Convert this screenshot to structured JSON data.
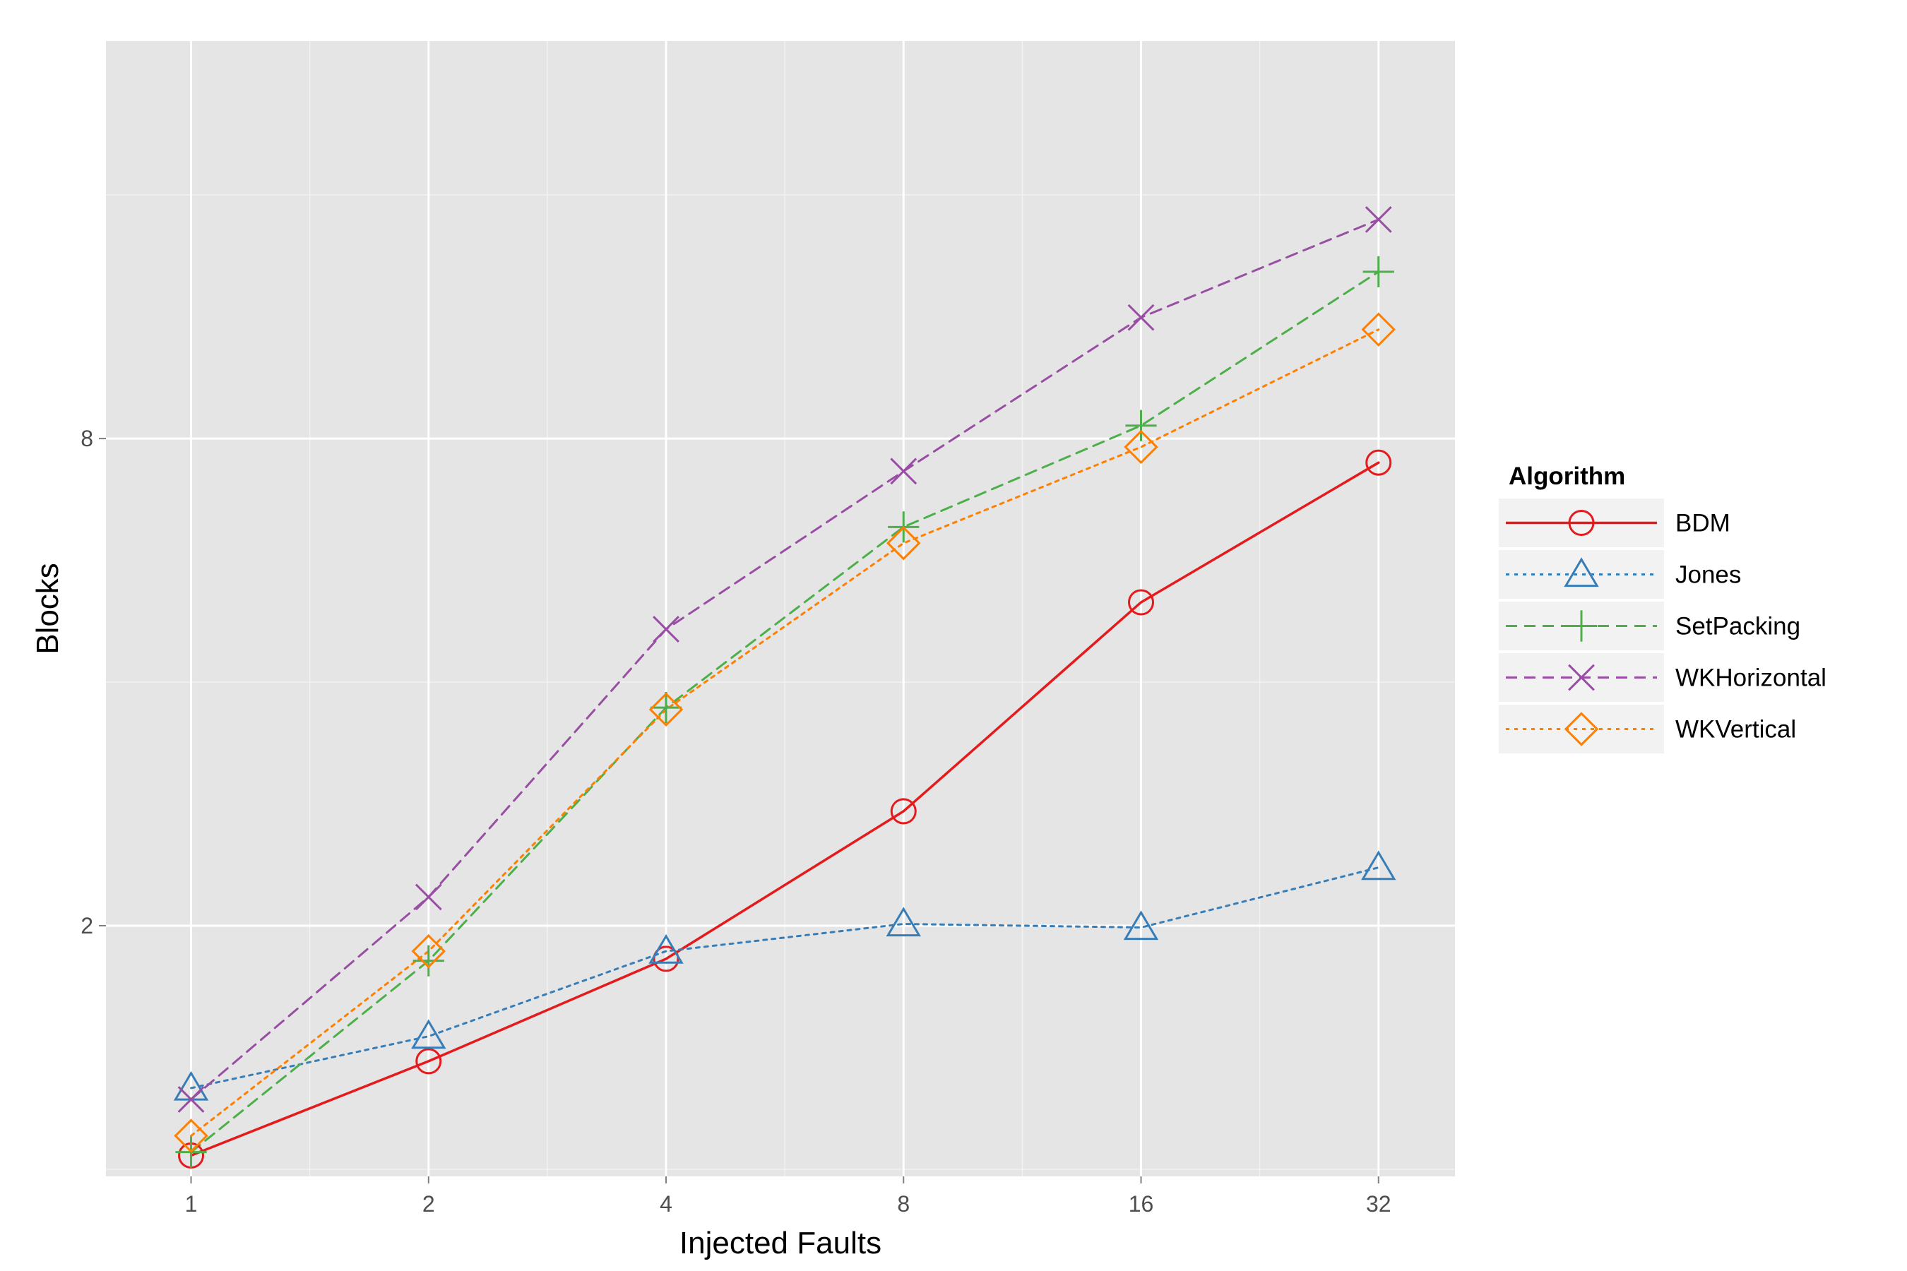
{
  "chart_data": {
    "type": "line",
    "title": "",
    "xlabel": "Injected Faults",
    "ylabel": "Blocks",
    "x_scale": "log2",
    "y_scale": "log2",
    "x": [
      1,
      2,
      4,
      8,
      16,
      32
    ],
    "x_tick_labels": [
      "1",
      "2",
      "4",
      "8",
      "16",
      "32"
    ],
    "y_ticks": [
      2,
      8
    ],
    "y_tick_labels": [
      "2",
      "8"
    ],
    "xlim": [
      0.78,
      40
    ],
    "ylim": [
      0.98,
      24.8
    ],
    "grid": true,
    "legend": {
      "title": "Algorithm",
      "position": "right"
    },
    "colors": {
      "panel_background": "#e5e5e5",
      "grid_major": "#ffffff",
      "grid_minor": "#f2f2f2"
    },
    "series": [
      {
        "name": "BDM",
        "values": [
          1.04,
          1.36,
          1.82,
          2.77,
          5.02,
          7.47
        ],
        "color": "#e41a1c",
        "line": "solid",
        "marker": "circle"
      },
      {
        "name": "Jones",
        "values": [
          1.26,
          1.46,
          1.86,
          2.01,
          1.99,
          2.36
        ],
        "color": "#377eb8",
        "line": "dotted",
        "marker": "triangle"
      },
      {
        "name": "SetPacking",
        "values": [
          1.05,
          1.81,
          3.72,
          6.22,
          8.3,
          12.86
        ],
        "color": "#4daf4a",
        "line": "dashed",
        "marker": "plus"
      },
      {
        "name": "WKHorizontal",
        "values": [
          1.22,
          2.17,
          4.65,
          7.29,
          11.29,
          14.92
        ],
        "color": "#984ea3",
        "line": "dashed",
        "marker": "x"
      },
      {
        "name": "WKVertical",
        "values": [
          1.1,
          1.86,
          3.7,
          5.94,
          7.81,
          10.91
        ],
        "color": "#ff7f00",
        "line": "dotted",
        "marker": "diamond"
      }
    ]
  }
}
